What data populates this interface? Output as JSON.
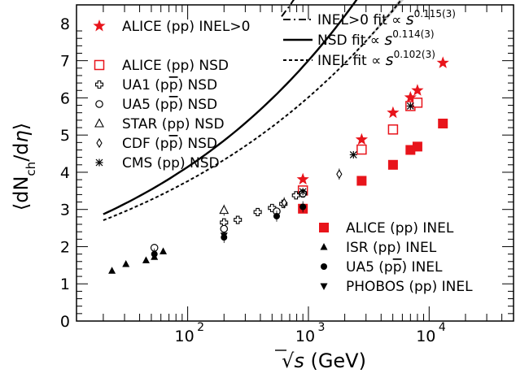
{
  "chart_data": {
    "type": "scatter",
    "xscale": "log",
    "xlim": [
      12,
      50000
    ],
    "ylim": [
      0,
      8.5
    ],
    "xlabel_sqrt": "√",
    "xlabel_s": "s",
    "xlabel_unit": " (GeV)",
    "ylabel_open": "⟨dN",
    "ylabel_sub": "ch",
    "ylabel_mid": "/d",
    "ylabel_eta": "η",
    "ylabel_close": "⟩",
    "y_ticks": [
      "0",
      "1",
      "2",
      "3",
      "4",
      "5",
      "6",
      "7",
      "8"
    ],
    "x_ticks": [
      {
        "base": "10",
        "exp": "2",
        "value": 100
      },
      {
        "base": "10",
        "exp": "3",
        "value": 1000
      },
      {
        "base": "10",
        "exp": "4",
        "value": 10000
      }
    ],
    "series": [
      {
        "name": "ALICE (pp) INEL>0",
        "marker": "star",
        "color": "#e8141b",
        "points": [
          [
            900,
            3.81
          ],
          [
            2760,
            4.88
          ],
          [
            5020,
            5.6
          ],
          [
            7000,
            6.01
          ],
          [
            8000,
            6.2
          ],
          [
            13000,
            6.94
          ]
        ]
      },
      {
        "name": "ALICE (pp) NSD",
        "marker": "open-square",
        "color": "#e8141b",
        "points": [
          [
            900,
            3.51
          ],
          [
            2760,
            4.61
          ],
          [
            5020,
            5.15
          ],
          [
            7000,
            5.78
          ],
          [
            8000,
            5.87
          ]
        ]
      },
      {
        "name": "UA1 (pp̄) NSD",
        "marker": "open-cross",
        "color": "#000000",
        "points": [
          [
            200,
            2.65
          ],
          [
            260,
            2.72
          ],
          [
            380,
            2.93
          ],
          [
            500,
            3.04
          ],
          [
            620,
            3.15
          ],
          [
            790,
            3.38
          ],
          [
            900,
            3.43
          ]
        ]
      },
      {
        "name": "UA5 (pp̄) NSD",
        "marker": "open-circle",
        "color": "#000000",
        "points": [
          [
            53,
            1.97
          ],
          [
            200,
            2.48
          ],
          [
            546,
            2.95
          ],
          [
            900,
            3.43
          ]
        ]
      },
      {
        "name": "STAR (pp) NSD",
        "marker": "open-triangle",
        "color": "#000000",
        "points": [
          [
            200,
            2.98
          ]
        ]
      },
      {
        "name": "CDF (pp̄) NSD",
        "marker": "open-diamond",
        "color": "#000000",
        "points": [
          [
            630,
            3.18
          ],
          [
            1800,
            3.95
          ]
        ]
      },
      {
        "name": "CMS (pp) NSD",
        "marker": "asterisk",
        "color": "#000000",
        "points": [
          [
            900,
            3.48
          ],
          [
            2360,
            4.47
          ],
          [
            7000,
            5.78
          ]
        ]
      },
      {
        "name": "ALICE (pp) INEL",
        "marker": "filled-square",
        "color": "#e8141b",
        "points": [
          [
            900,
            3.02
          ],
          [
            2760,
            3.77
          ],
          [
            5020,
            4.2
          ],
          [
            7000,
            4.6
          ],
          [
            8000,
            4.69
          ],
          [
            13000,
            5.31
          ]
        ]
      },
      {
        "name": "ISR (pp) INEL",
        "marker": "filled-triangle",
        "color": "#000000",
        "points": [
          [
            23.6,
            1.35
          ],
          [
            30.8,
            1.53
          ],
          [
            45.2,
            1.63
          ],
          [
            53,
            1.72
          ],
          [
            62.7,
            1.87
          ]
        ]
      },
      {
        "name": "UA5 (pp̄) INEL",
        "marker": "filled-circle",
        "color": "#000000",
        "points": [
          [
            53,
            1.8
          ],
          [
            200,
            2.25
          ],
          [
            546,
            2.82
          ],
          [
            900,
            3.07
          ]
        ]
      },
      {
        "name": "PHOBOS (pp) INEL",
        "marker": "filled-down-triangle",
        "color": "#000000",
        "points": [
          [
            200,
            2.3
          ]
        ]
      }
    ],
    "fits": [
      {
        "label": "INEL>0 fit ∝ ",
        "power_base": "s",
        "power_exp": "0.115(3)",
        "style": "dash-dot",
        "a": 1.88,
        "b": 0.115,
        "range": [
          600,
          18000
        ]
      },
      {
        "label": "NSD fit ∝ ",
        "power_base": "s",
        "power_exp": "0.114(3)",
        "style": "solid",
        "a": 1.45,
        "b": 0.114,
        "range": [
          20,
          18000
        ]
      },
      {
        "label": "INEL fit ∝ ",
        "power_base": "s",
        "power_exp": "0.102(3)",
        "style": "dotted",
        "a": 1.47,
        "b": 0.102,
        "range": [
          20,
          18000
        ]
      }
    ]
  }
}
